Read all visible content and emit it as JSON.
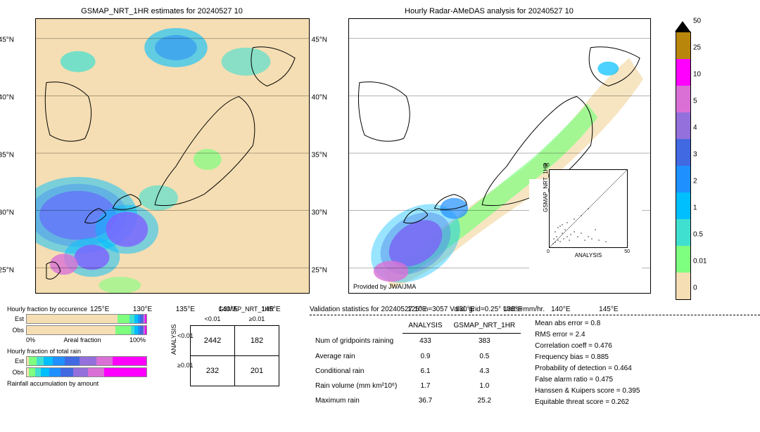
{
  "map1": {
    "title": "GSMAP_NRT_1HR estimates for 20240527 10",
    "y_ticks": [
      "45°N",
      "40°N",
      "35°N",
      "30°N",
      "25°N"
    ],
    "x_ticks": [
      "125°E",
      "130°E",
      "135°E",
      "140°E",
      "145°E"
    ],
    "bg_color": "#f5deb3"
  },
  "map2": {
    "title": "Hourly Radar-AMeDAS analysis for 20240527 10",
    "y_ticks": [
      "45°N",
      "40°N",
      "35°N",
      "30°N",
      "25°N"
    ],
    "x_ticks": [
      "125°E",
      "130°E",
      "135°E",
      "140°E",
      "145°E"
    ],
    "bg_color": "#ffffff",
    "attribution": "Provided by JWA/JMA"
  },
  "inset": {
    "xlabel": "ANALYSIS",
    "ylabel": "GSMAP_NRT_1HR",
    "ticks": [
      "0",
      "10",
      "20",
      "30",
      "40",
      "50"
    ]
  },
  "colorbar": {
    "segments": [
      {
        "color": "#b8860b",
        "frac": 0.1
      },
      {
        "color": "#ff00ff",
        "frac": 0.1
      },
      {
        "color": "#da70d6",
        "frac": 0.1
      },
      {
        "color": "#9370db",
        "frac": 0.1
      },
      {
        "color": "#4169e1",
        "frac": 0.1
      },
      {
        "color": "#1e90ff",
        "frac": 0.1
      },
      {
        "color": "#00bfff",
        "frac": 0.1
      },
      {
        "color": "#40e0d0",
        "frac": 0.1
      },
      {
        "color": "#7fff7f",
        "frac": 0.1
      },
      {
        "color": "#f5deb3",
        "frac": 0.1
      }
    ],
    "labels": [
      "50",
      "25",
      "10",
      "5",
      "4",
      "3",
      "2",
      "1",
      "0.5",
      "0.01",
      "0"
    ]
  },
  "fraction": {
    "occurrence_title": "Hourly fraction by occurence",
    "totalrain_title": "Hourly fraction of total rain",
    "accum_title": "Rainfall accumulation by amount",
    "est_label": "Est",
    "obs_label": "Obs",
    "axis_left": "0%",
    "axis_center": "Areal fraction",
    "axis_right": "100%",
    "est_occ": [
      {
        "color": "#f5deb3",
        "frac": 0.76
      },
      {
        "color": "#7fff7f",
        "frac": 0.1
      },
      {
        "color": "#40e0d0",
        "frac": 0.04
      },
      {
        "color": "#00bfff",
        "frac": 0.03
      },
      {
        "color": "#1e90ff",
        "frac": 0.02
      },
      {
        "color": "#4169e1",
        "frac": 0.02
      },
      {
        "color": "#9370db",
        "frac": 0.01
      },
      {
        "color": "#da70d6",
        "frac": 0.01
      },
      {
        "color": "#ff00ff",
        "frac": 0.01
      }
    ],
    "obs_occ": [
      {
        "color": "#f5deb3",
        "frac": 0.74
      },
      {
        "color": "#7fff7f",
        "frac": 0.13
      },
      {
        "color": "#40e0d0",
        "frac": 0.03
      },
      {
        "color": "#00bfff",
        "frac": 0.03
      },
      {
        "color": "#1e90ff",
        "frac": 0.02
      },
      {
        "color": "#4169e1",
        "frac": 0.02
      },
      {
        "color": "#9370db",
        "frac": 0.01
      },
      {
        "color": "#da70d6",
        "frac": 0.01
      },
      {
        "color": "#ff00ff",
        "frac": 0.01
      }
    ],
    "est_tot": [
      {
        "color": "#f5deb3",
        "frac": 0.02
      },
      {
        "color": "#7fff7f",
        "frac": 0.06
      },
      {
        "color": "#40e0d0",
        "frac": 0.06
      },
      {
        "color": "#00bfff",
        "frac": 0.08
      },
      {
        "color": "#1e90ff",
        "frac": 0.1
      },
      {
        "color": "#4169e1",
        "frac": 0.12
      },
      {
        "color": "#9370db",
        "frac": 0.14
      },
      {
        "color": "#da70d6",
        "frac": 0.14
      },
      {
        "color": "#ff00ff",
        "frac": 0.28
      }
    ],
    "obs_tot": [
      {
        "color": "#f5deb3",
        "frac": 0.02
      },
      {
        "color": "#7fff7f",
        "frac": 0.05
      },
      {
        "color": "#40e0d0",
        "frac": 0.05
      },
      {
        "color": "#00bfff",
        "frac": 0.07
      },
      {
        "color": "#1e90ff",
        "frac": 0.09
      },
      {
        "color": "#4169e1",
        "frac": 0.11
      },
      {
        "color": "#9370db",
        "frac": 0.12
      },
      {
        "color": "#da70d6",
        "frac": 0.14
      },
      {
        "color": "#ff00ff",
        "frac": 0.35
      }
    ]
  },
  "contingency": {
    "col_header": "GSMAP_NRT_1HR",
    "row_header": "ANALYSIS",
    "col_labels": [
      "<0.01",
      "≥0.01"
    ],
    "row_labels": [
      "<0.01",
      "≥0.01"
    ],
    "cells": [
      [
        "2442",
        "182"
      ],
      [
        "232",
        "201"
      ]
    ]
  },
  "validation": {
    "title": "Validation statistics for 20240527 10  n=3057 Valid. grid=0.25° Units=mm/hr.",
    "col1": "ANALYSIS",
    "col2": "GSMAP_NRT_1HR",
    "rows": [
      {
        "label": "Num of gridpoints raining",
        "v1": "433",
        "v2": "383"
      },
      {
        "label": "Average rain",
        "v1": "0.9",
        "v2": "0.5"
      },
      {
        "label": "Conditional rain",
        "v1": "6.1",
        "v2": "4.3"
      },
      {
        "label": "Rain volume (mm km²10⁶)",
        "v1": "1.7",
        "v2": "1.0"
      },
      {
        "label": "Maximum rain",
        "v1": "36.7",
        "v2": "25.2"
      }
    ],
    "stats": [
      "Mean abs error =   0.8",
      "RMS error =   2.4",
      "Correlation coeff =  0.476",
      "Frequency bias =  0.885",
      "Probability of detection =  0.464",
      "False alarm ratio =  0.475",
      "Hanssen & Kuipers score =  0.395",
      "Equitable threat score =  0.262"
    ]
  }
}
